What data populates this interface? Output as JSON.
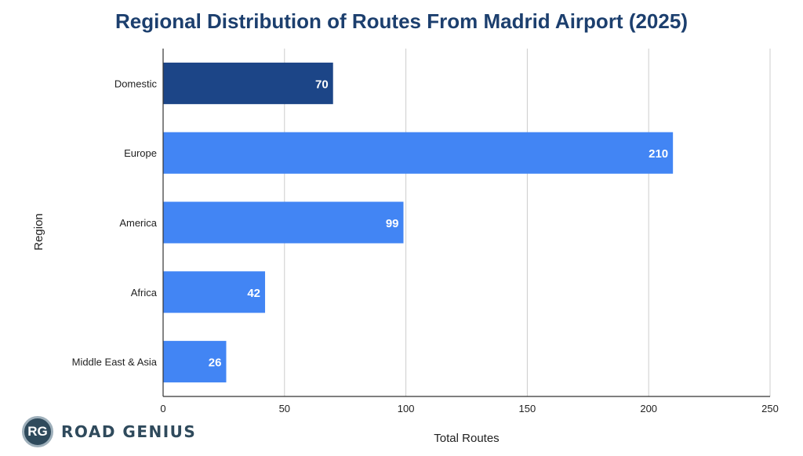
{
  "colors": {
    "highlight": "#1c4587",
    "bar": "#4285f4",
    "title": "#1c3f6e"
  },
  "chart_data": {
    "type": "bar",
    "orientation": "horizontal",
    "title": "Regional Distribution of Routes From Madrid Airport (2025)",
    "xlabel": "Total Routes",
    "ylabel": "Region",
    "categories": [
      "Domestic",
      "Europe",
      "America",
      "Africa",
      "Middle East & Asia"
    ],
    "values": [
      70,
      210,
      99,
      42,
      26
    ],
    "highlighted": [
      "Domestic"
    ],
    "xlim": [
      0,
      250
    ],
    "xticks": [
      0,
      50,
      100,
      150,
      200,
      250
    ],
    "grid": true,
    "data_labels": true
  },
  "logo": {
    "monogram": "RG",
    "text": "ROAD GENIUS"
  }
}
